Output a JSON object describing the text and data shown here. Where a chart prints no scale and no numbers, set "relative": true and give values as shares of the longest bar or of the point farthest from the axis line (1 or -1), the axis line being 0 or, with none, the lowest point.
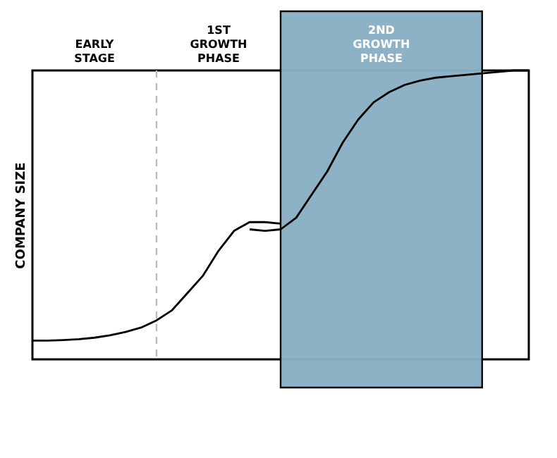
{
  "chart_data": {
    "type": "line",
    "relative": true,
    "ylabel": "COMPANY SIZE",
    "marker": "none",
    "line_style": "solid",
    "categories": [
      null,
      null,
      null,
      null,
      null,
      null,
      null,
      null,
      null,
      null,
      null,
      null,
      null,
      null,
      null,
      null,
      null,
      null,
      null,
      null,
      null,
      null,
      null,
      null,
      null,
      null,
      null,
      null,
      null,
      null,
      null,
      null,
      null
    ],
    "series": [
      {
        "color": "#000000",
        "values": [
          0.065,
          0.065,
          0.067,
          0.07,
          0.075,
          0.083,
          0.095,
          0.11,
          0.135,
          0.17,
          0.23,
          0.29,
          0.376,
          0.445,
          0.475,
          0.475,
          0.47,
          null,
          null,
          null,
          null,
          null,
          null,
          null,
          null,
          null,
          null,
          null,
          null,
          null,
          null,
          null,
          null
        ]
      },
      {
        "color": "#000000",
        "values": [
          null,
          null,
          null,
          null,
          null,
          null,
          null,
          null,
          null,
          null,
          null,
          null,
          null,
          null,
          0.45,
          0.445,
          0.45,
          0.49,
          0.57,
          0.65,
          0.75,
          0.83,
          0.89,
          0.925,
          0.95,
          0.965,
          0.975,
          0.98,
          0.985,
          0.99,
          0.995,
          1,
          1
        ]
      }
    ],
    "annotations": [
      "EARLY STAGE",
      "1ST GROWTH PHASE",
      "2ND GROWTH PHASE"
    ]
  }
}
